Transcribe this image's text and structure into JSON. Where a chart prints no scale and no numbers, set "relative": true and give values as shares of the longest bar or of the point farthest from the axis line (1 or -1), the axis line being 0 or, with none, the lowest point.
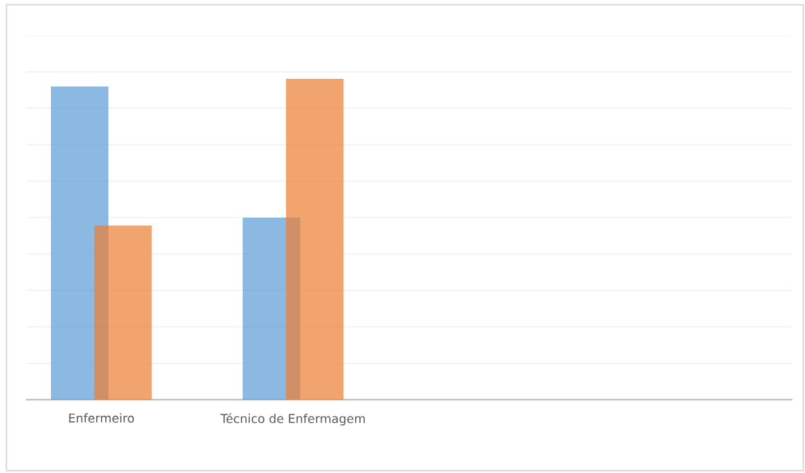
{
  "chart_data": {
    "type": "bar",
    "relative": true,
    "grid": "y",
    "categories": [
      "Enfermeiro",
      "Técnico de Enfermagem",
      null,
      null
    ],
    "series": [
      {
        "color": "#5b9bd5",
        "values": [
          0.976,
          0.567,
          null,
          null
        ]
      },
      {
        "color": "#ed7d31",
        "values": [
          0.543,
          1,
          null,
          null
        ]
      }
    ]
  }
}
